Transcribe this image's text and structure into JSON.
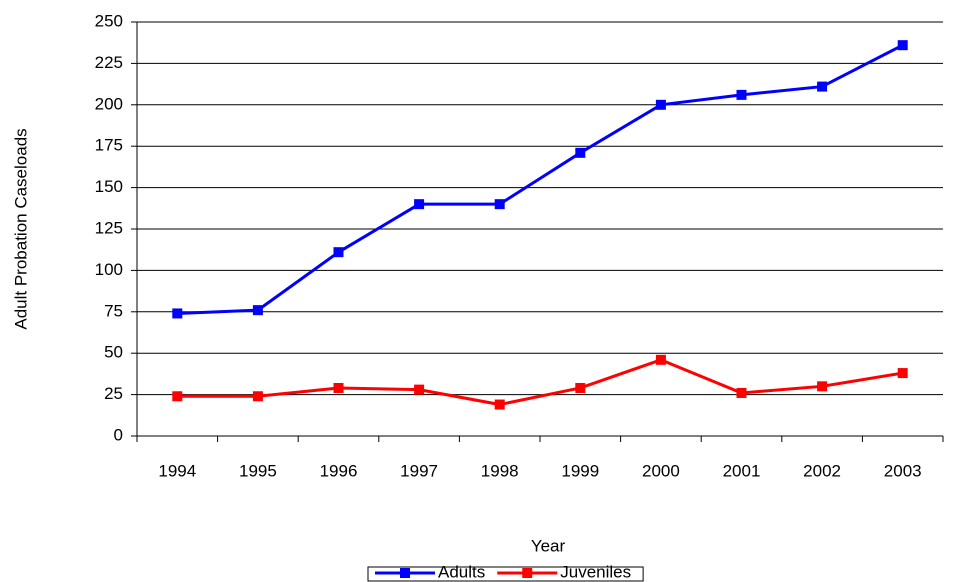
{
  "chart_data": {
    "type": "line",
    "x_label": "Year",
    "y_label": "Adult Probation Caseloads",
    "categories": [
      "1994",
      "1995",
      "1996",
      "1997",
      "1998",
      "1999",
      "2000",
      "2001",
      "2002",
      "2003"
    ],
    "series": [
      {
        "name": "Adults",
        "color": "#0000ff",
        "values": [
          74,
          76,
          111,
          140,
          140,
          171,
          200,
          206,
          211,
          236
        ]
      },
      {
        "name": "Juveniles",
        "color": "#ff0000",
        "values": [
          24,
          24,
          29,
          28,
          19,
          29,
          46,
          26,
          30,
          38
        ]
      }
    ],
    "ylim": [
      0,
      250
    ],
    "yticks": [
      0,
      25,
      50,
      75,
      100,
      125,
      150,
      175,
      200,
      225,
      250
    ],
    "grid": true,
    "legend": "bottom"
  }
}
